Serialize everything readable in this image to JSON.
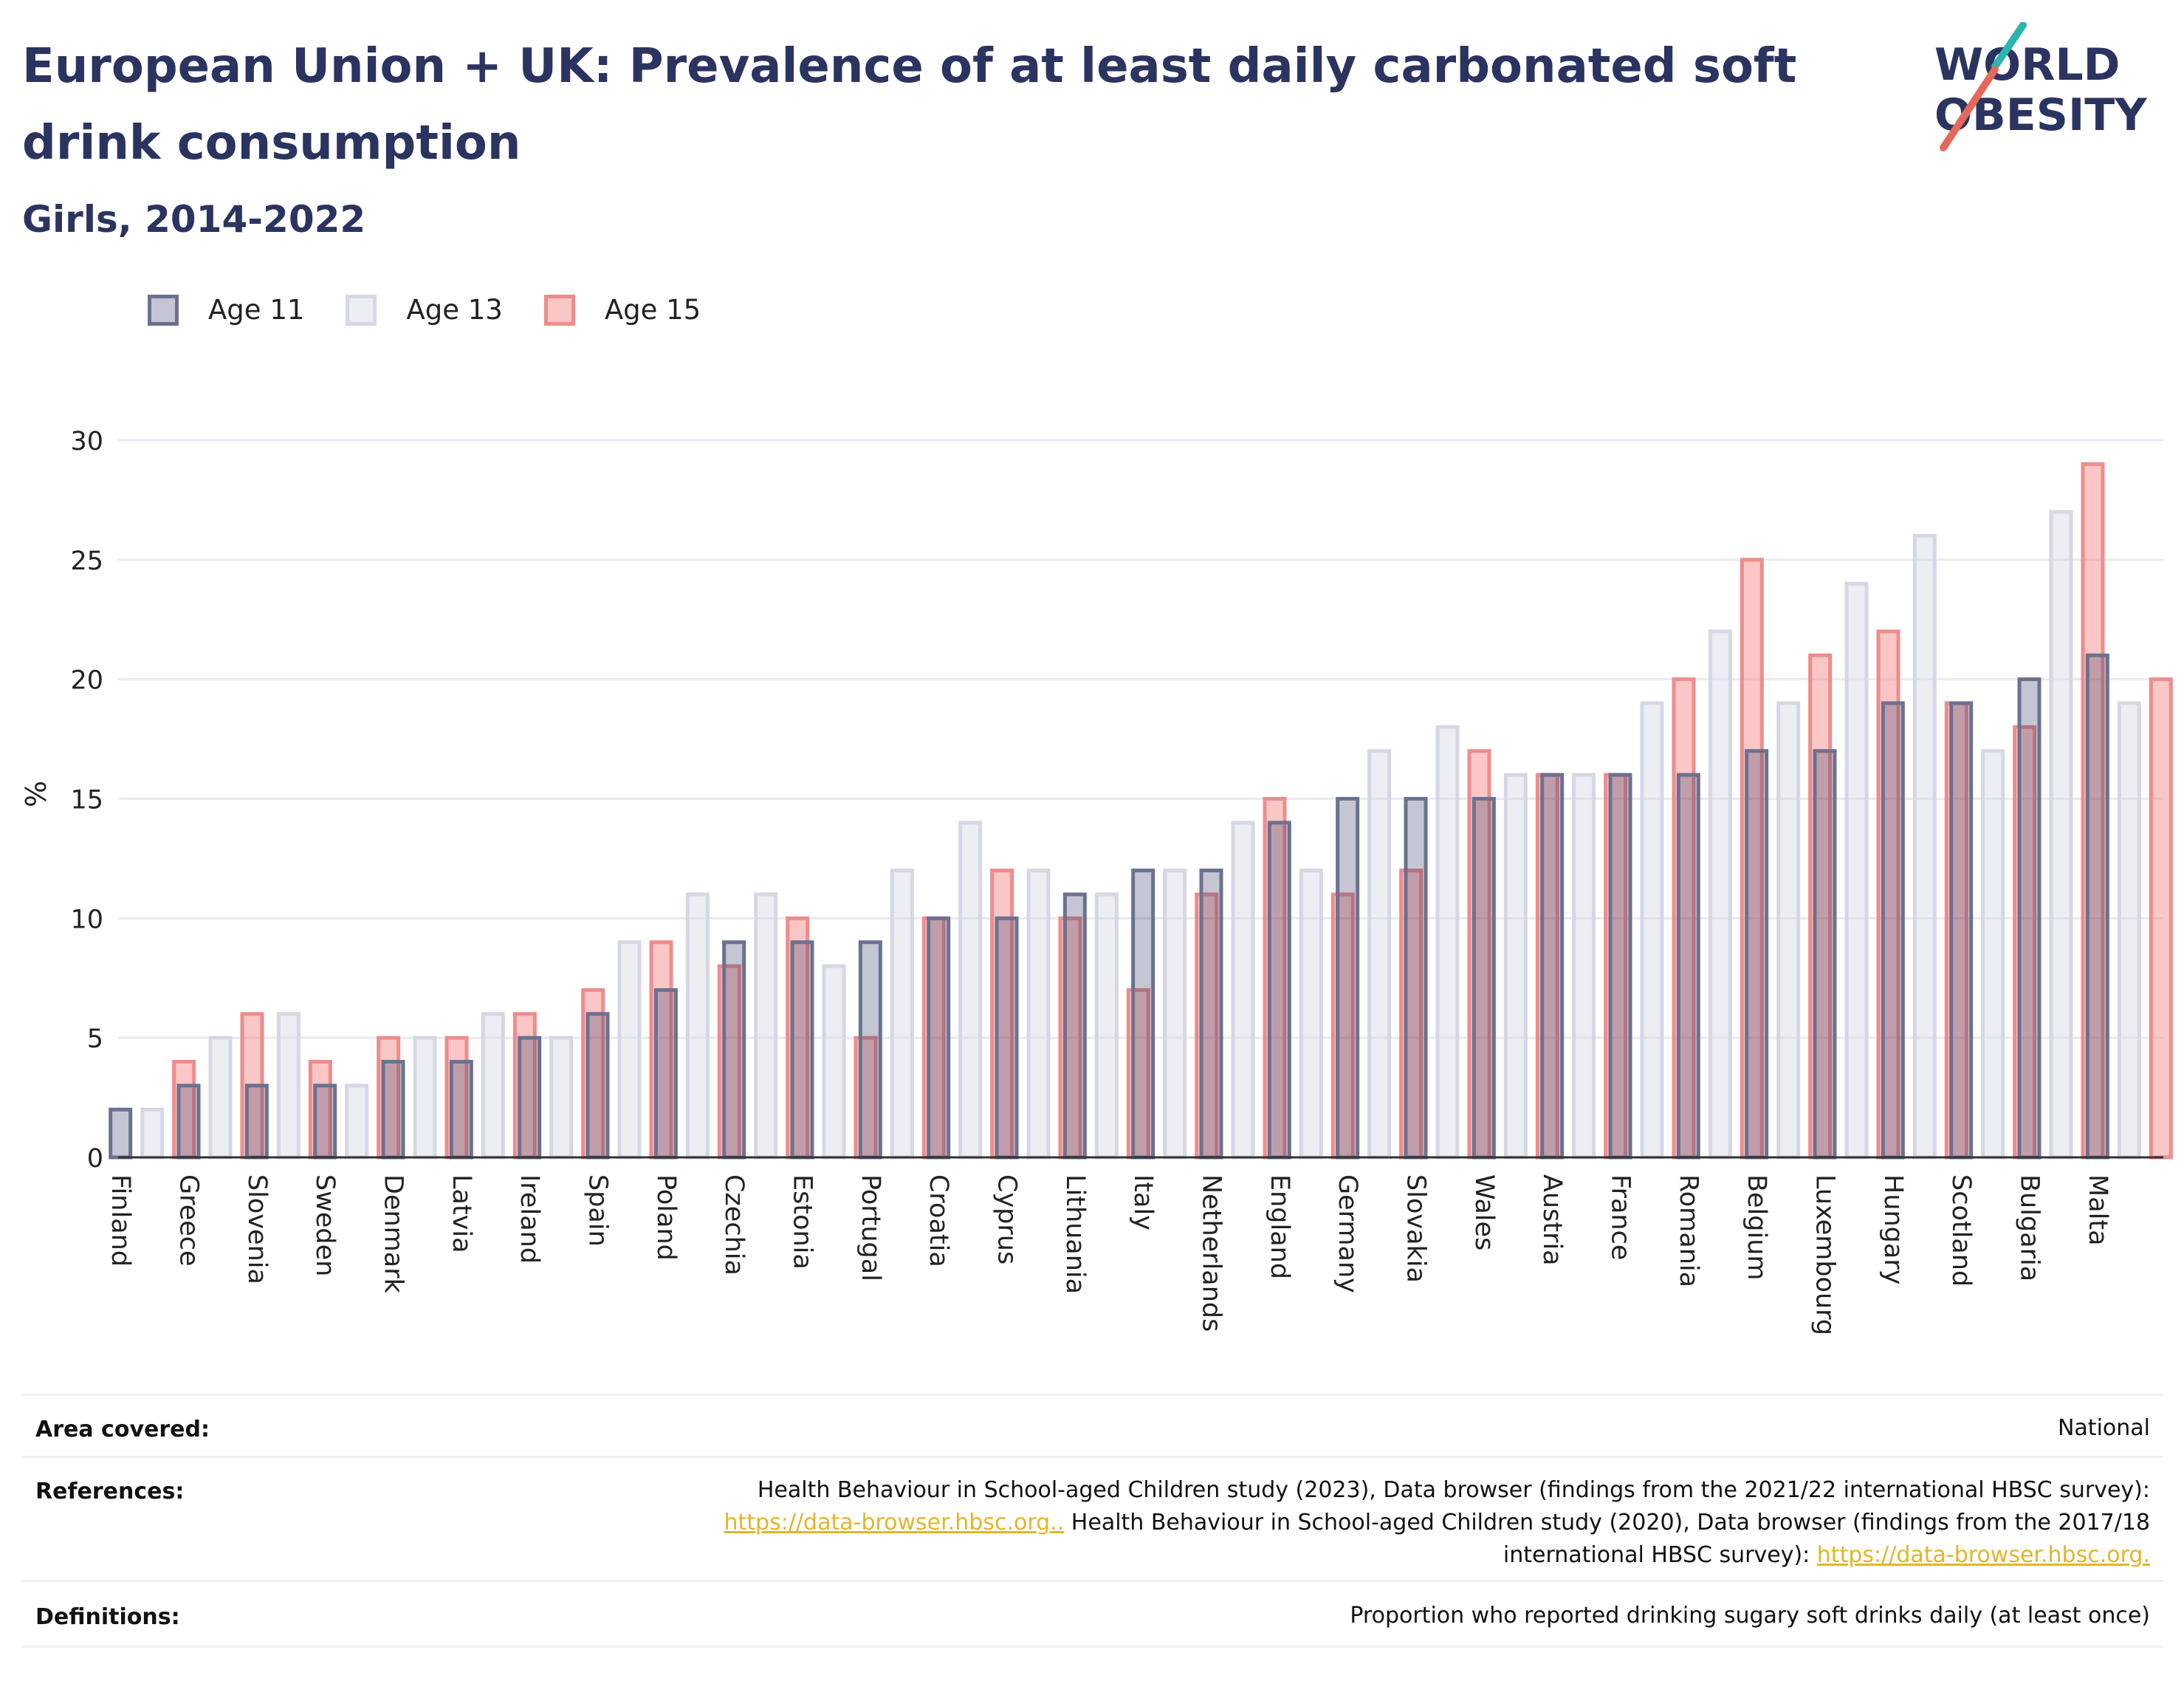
{
  "header": {
    "title": "European Union + UK: Prevalence of at least daily carbonated soft drink consumption",
    "subtitle": "Girls, 2014-2022"
  },
  "logo": {
    "line1": "WORLD",
    "line2": "OBESITY",
    "accent_teal": "#2bb3b1",
    "accent_red": "#e5685a",
    "text_color": "#2b3460"
  },
  "colors": {
    "age11_fill": "rgba(43,52,96,0.28)",
    "age11_stroke": "#6b7190",
    "age13_fill": "rgba(215,218,230,0.45)",
    "age13_stroke": "#d5d8e4",
    "age15_fill": "rgba(245,120,120,0.42)",
    "age15_stroke": "#ee8c8c",
    "grid": "#e8eaf2",
    "axis": "#333333"
  },
  "chart_data": {
    "type": "bar",
    "ylabel": "%",
    "xlabel": "",
    "ylim": [
      0,
      30
    ],
    "yticks": [
      0,
      5,
      10,
      15,
      20,
      25,
      30
    ],
    "legend_position": "top-left",
    "grid": true,
    "categories": [
      "Finland",
      "Greece",
      "Slovenia",
      "Sweden",
      "Denmark",
      "Latvia",
      "Ireland",
      "Spain",
      "Poland",
      "Czechia",
      "Estonia",
      "Portugal",
      "Croatia",
      "Cyprus",
      "Lithuania",
      "Italy",
      "Netherlands",
      "England",
      "Germany",
      "Slovakia",
      "Wales",
      "Austria",
      "France",
      "Romania",
      "Belgium",
      "Luxembourg",
      "Hungary",
      "Scotland",
      "Bulgaria",
      "Malta"
    ],
    "series": [
      {
        "name": "Age 11",
        "values": [
          2,
          3,
          3,
          3,
          4,
          4,
          5,
          6,
          7,
          9,
          9,
          9,
          10,
          10,
          11,
          12,
          12,
          14,
          15,
          15,
          15,
          16,
          16,
          16,
          17,
          17,
          19,
          19,
          20,
          21
        ]
      },
      {
        "name": "Age 13",
        "values": [
          2,
          5,
          6,
          3,
          5,
          6,
          5,
          9,
          11,
          11,
          8,
          12,
          14,
          12,
          11,
          12,
          14,
          12,
          17,
          18,
          16,
          16,
          19,
          22,
          19,
          24,
          26,
          17,
          27,
          19
        ]
      },
      {
        "name": "Age 15",
        "values": [
          4,
          6,
          4,
          5,
          5,
          6,
          7,
          9,
          8,
          10,
          5,
          10,
          12,
          10,
          7,
          11,
          15,
          11,
          12,
          17,
          16,
          16,
          20,
          25,
          21,
          22,
          19,
          18,
          29,
          20
        ]
      }
    ]
  },
  "footer": {
    "area_label": "Area covered:",
    "area_value": "National",
    "references_label": "References:",
    "ref_line1": "Health Behaviour in School-aged Children study (2023), Data browser (findings from the 2021/22 international HBSC survey):",
    "ref_link1": "https://data-browser.hbsc.org..",
    "ref_line2_text": " Health Behaviour in School-aged Children study (2020), Data browser (findings from the 2017/18",
    "ref_line3_text": "international HBSC survey): ",
    "ref_link2": "https://data-browser.hbsc.org.",
    "definitions_label": "Definitions:",
    "definitions_value": "Proportion who reported drinking sugary soft drinks daily (at least once)"
  }
}
